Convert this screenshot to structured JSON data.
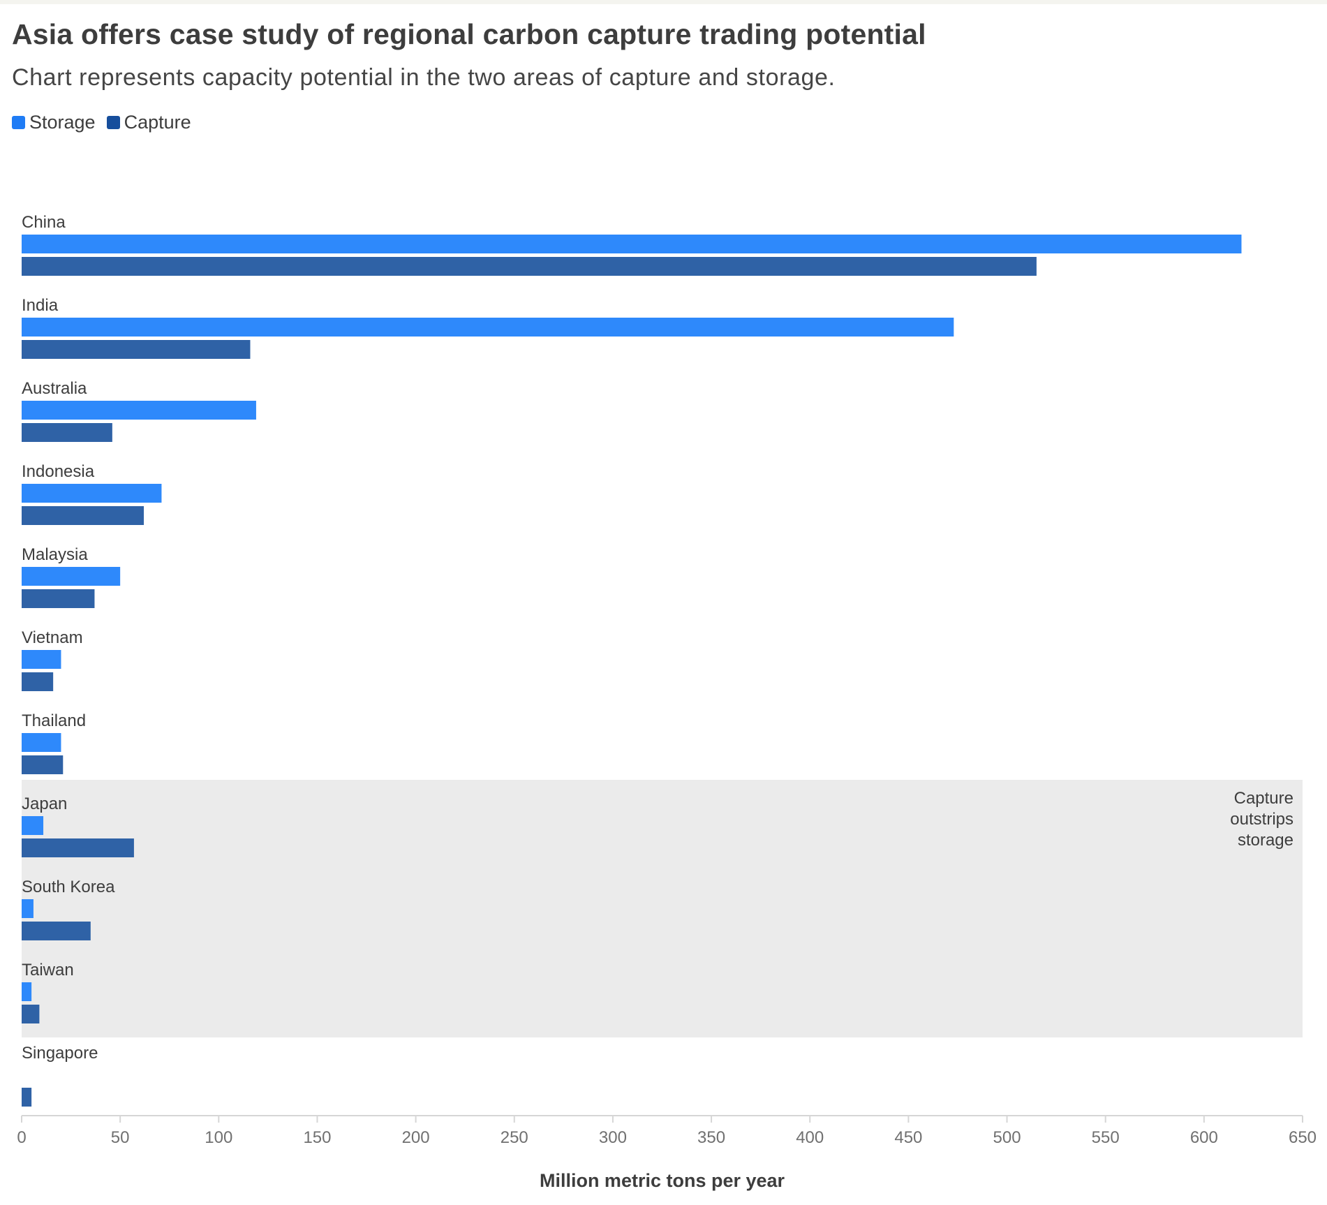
{
  "colors": {
    "storage": "#2e89fb",
    "capture": "#2f62a6",
    "legend_storage": "#1f7cf5",
    "legend_capture": "#164e9c",
    "highlight_band": "#ebebeb",
    "axis": "#d6d6d6",
    "tick_text": "#707070"
  },
  "chart_data": {
    "type": "bar",
    "orientation": "horizontal",
    "title": "Asia offers case study of regional carbon capture trading potential",
    "subtitle": "Chart represents capacity potential in the two areas of capture and storage.",
    "xlabel": "Million metric tons per year",
    "xlim": [
      0,
      650
    ],
    "xticks": [
      0,
      50,
      100,
      150,
      200,
      250,
      300,
      350,
      400,
      450,
      500,
      550,
      600,
      650
    ],
    "grid": false,
    "legend_position": "top-left",
    "categories": [
      "China",
      "India",
      "Australia",
      "Indonesia",
      "Malaysia",
      "Vietnam",
      "Thailand",
      "Japan",
      "South Korea",
      "Taiwan",
      "Singapore"
    ],
    "series": [
      {
        "name": "Storage",
        "values": [
          619,
          473,
          119,
          71,
          50,
          20,
          20,
          11,
          6,
          5,
          0
        ]
      },
      {
        "name": "Capture",
        "values": [
          515,
          116,
          46,
          62,
          37,
          16,
          21,
          57,
          35,
          9,
          5
        ]
      }
    ],
    "annotation": {
      "text_lines": [
        "Capture",
        "outstrips",
        "storage"
      ],
      "highlighted_categories": [
        "Japan",
        "South Korea",
        "Taiwan"
      ]
    }
  }
}
